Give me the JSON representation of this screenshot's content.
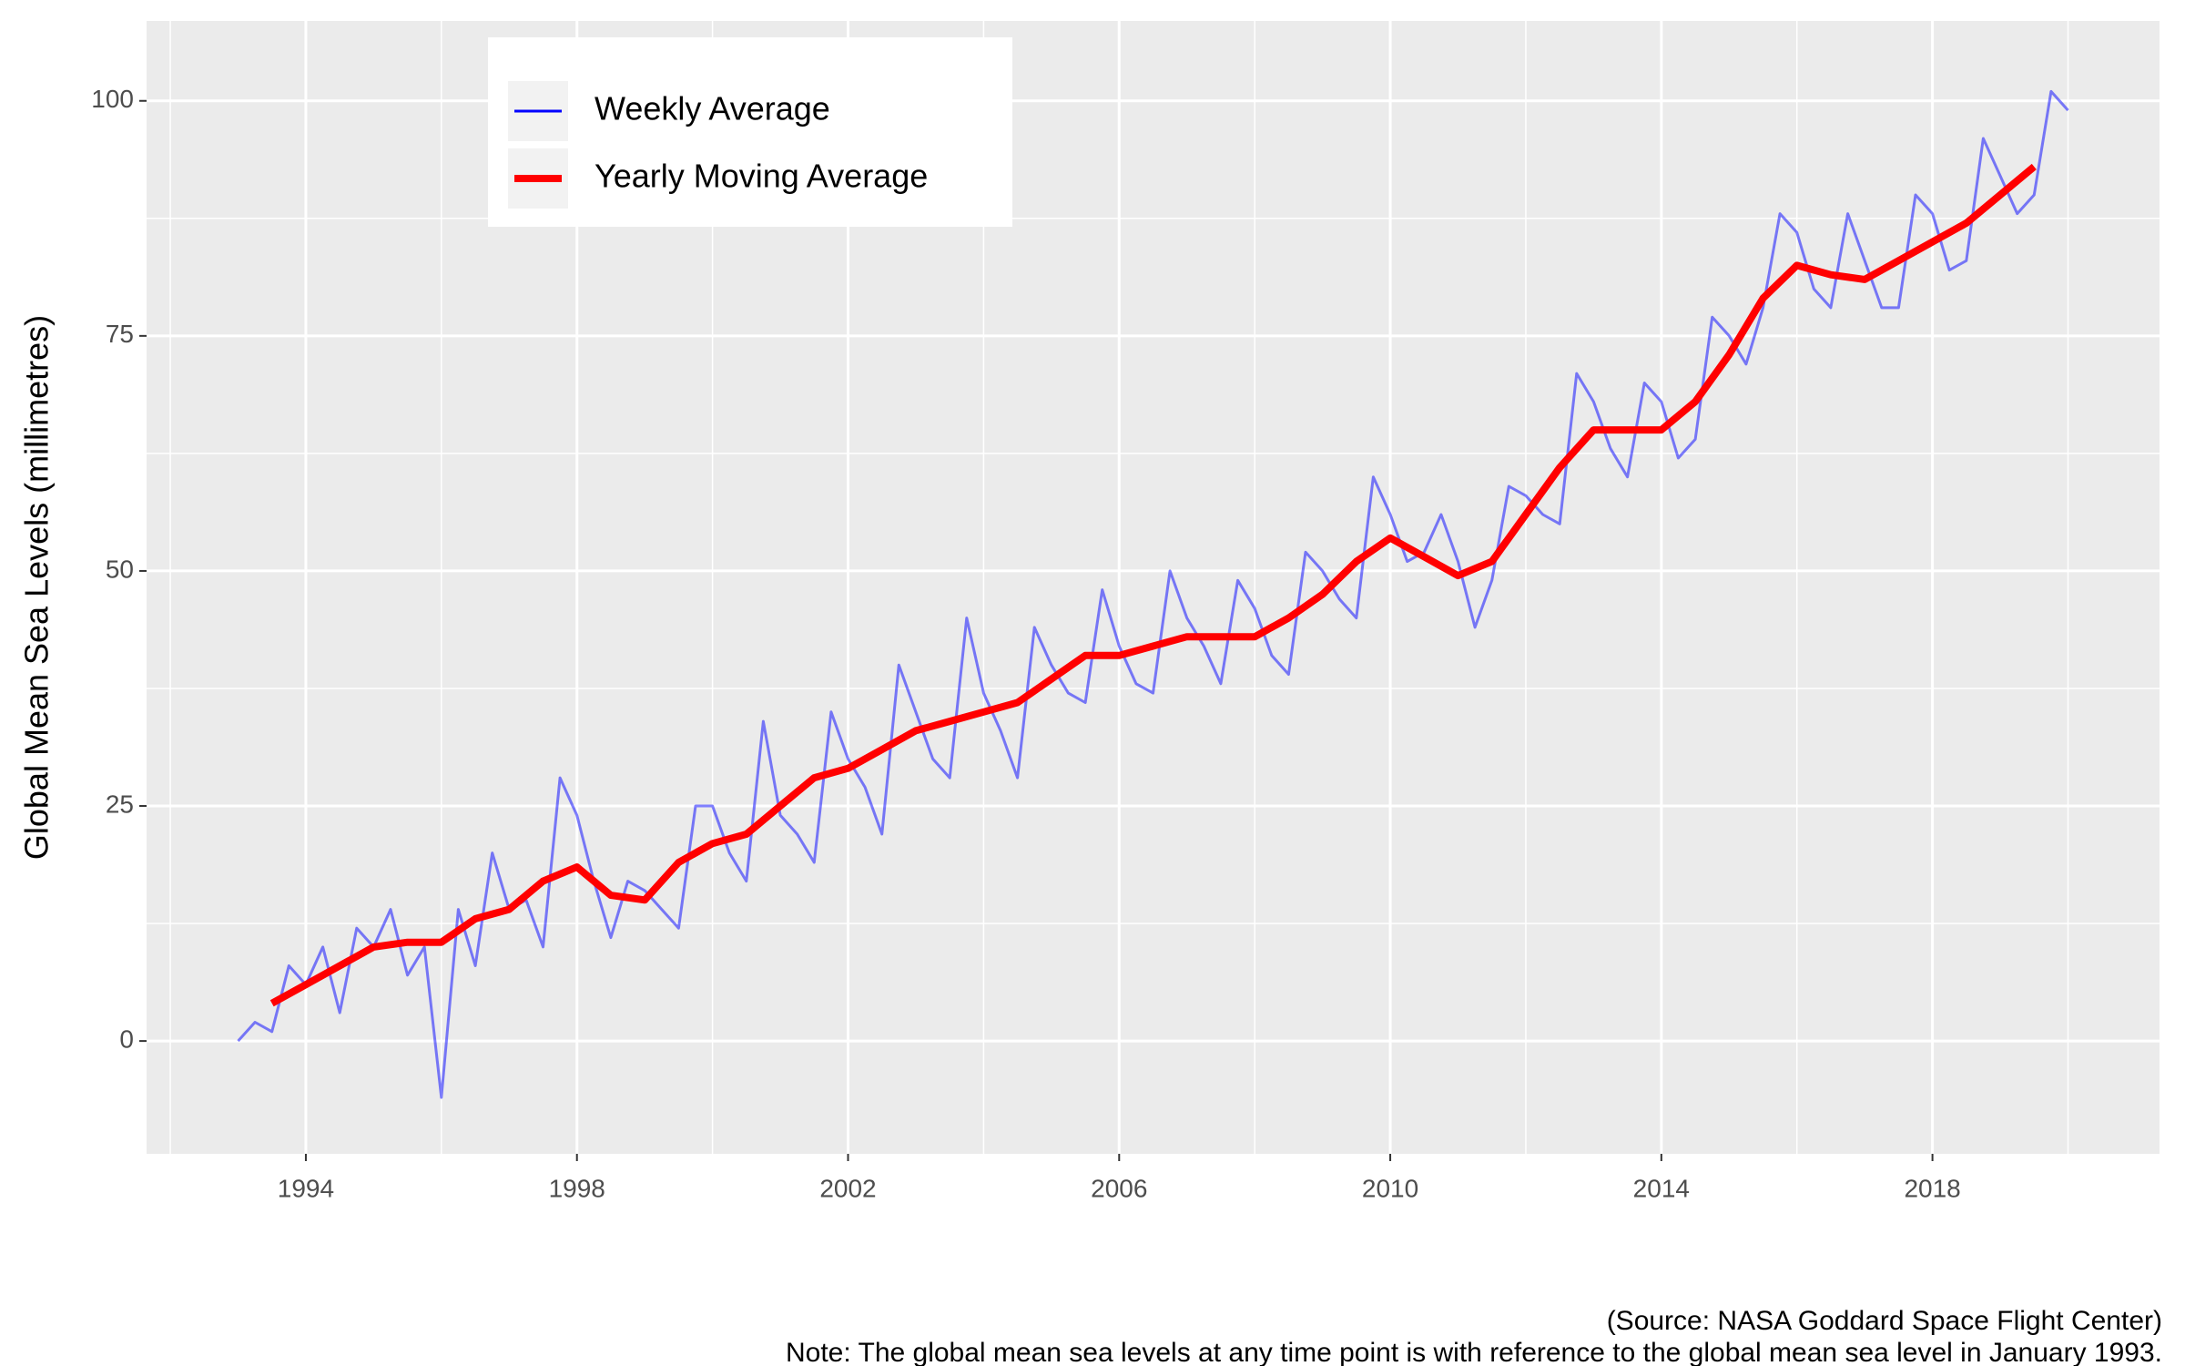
{
  "chart_data": {
    "type": "line",
    "y_label": "Global Mean Sea Levels (millimetres)",
    "caption": [
      "(Source: NASA Goddard Space Flight Center)",
      "Note: The global mean sea levels at any time point is with reference to the global mean sea level in January 1993."
    ],
    "xlim": [
      1991.65,
      2021.35
    ],
    "xticks": [
      1994,
      1998,
      2002,
      2006,
      2010,
      2014,
      2018
    ],
    "ylim": [
      -12,
      108.5
    ],
    "yticks": [
      0,
      25,
      50,
      75,
      100
    ],
    "grid": true,
    "legend": "top-left",
    "series": [
      {
        "name": "Weekly Average",
        "color": "#0000ff",
        "opacity": 0.5,
        "width": 3,
        "x": [
          1993.0,
          1993.25,
          1993.5,
          1993.75,
          1994.0,
          1994.25,
          1994.5,
          1994.75,
          1995.0,
          1995.25,
          1995.5,
          1995.75,
          1996.0,
          1996.25,
          1996.5,
          1996.75,
          1997.0,
          1997.25,
          1997.5,
          1997.75,
          1998.0,
          1998.25,
          1998.5,
          1998.75,
          1999.0,
          1999.25,
          1999.5,
          1999.75,
          2000.0,
          2000.25,
          2000.5,
          2000.75,
          2001.0,
          2001.25,
          2001.5,
          2001.75,
          2002.0,
          2002.25,
          2002.5,
          2002.75,
          2003.0,
          2003.25,
          2003.5,
          2003.75,
          2004.0,
          2004.25,
          2004.5,
          2004.75,
          2005.0,
          2005.25,
          2005.5,
          2005.75,
          2006.0,
          2006.25,
          2006.5,
          2006.75,
          2007.0,
          2007.25,
          2007.5,
          2007.75,
          2008.0,
          2008.25,
          2008.5,
          2008.75,
          2009.0,
          2009.25,
          2009.5,
          2009.75,
          2010.0,
          2010.25,
          2010.5,
          2010.75,
          2011.0,
          2011.25,
          2011.5,
          2011.75,
          2012.0,
          2012.25,
          2012.5,
          2012.75,
          2013.0,
          2013.25,
          2013.5,
          2013.75,
          2014.0,
          2014.25,
          2014.5,
          2014.75,
          2015.0,
          2015.25,
          2015.5,
          2015.75,
          2016.0,
          2016.25,
          2016.5,
          2016.75,
          2017.0,
          2017.25,
          2017.5,
          2017.75,
          2018.0,
          2018.25,
          2018.5,
          2018.75,
          2019.0,
          2019.25,
          2019.5,
          2019.75,
          2020.0
        ],
        "values": [
          0,
          2,
          1,
          8,
          6,
          10,
          3,
          12,
          10,
          14,
          7,
          10,
          -6,
          14,
          8,
          20,
          14,
          15,
          10,
          28,
          24,
          17,
          11,
          17,
          16,
          14,
          12,
          25,
          25,
          20,
          17,
          34,
          24,
          22,
          19,
          35,
          30,
          27,
          22,
          40,
          35,
          30,
          28,
          45,
          37,
          33,
          28,
          44,
          40,
          37,
          36,
          48,
          42,
          38,
          37,
          50,
          45,
          42,
          38,
          49,
          46,
          41,
          39,
          52,
          50,
          47,
          45,
          60,
          56,
          51,
          52,
          56,
          51,
          44,
          49,
          59,
          58,
          56,
          55,
          71,
          68,
          63,
          60,
          70,
          68,
          62,
          64,
          77,
          75,
          72,
          78,
          88,
          86,
          80,
          78,
          88,
          83,
          78,
          78,
          90,
          88,
          82,
          83,
          96,
          92,
          88,
          90,
          101,
          99
        ]
      },
      {
        "name": "Yearly Moving Average",
        "color": "#ff0000",
        "width": 8,
        "x": [
          1993.5,
          1994.0,
          1994.5,
          1995.0,
          1995.5,
          1996.0,
          1996.5,
          1997.0,
          1997.5,
          1998.0,
          1998.5,
          1999.0,
          1999.5,
          2000.0,
          2000.5,
          2001.0,
          2001.5,
          2002.0,
          2002.5,
          2003.0,
          2003.5,
          2004.0,
          2004.5,
          2005.0,
          2005.5,
          2006.0,
          2006.5,
          2007.0,
          2007.5,
          2008.0,
          2008.5,
          2009.0,
          2009.5,
          2010.0,
          2010.5,
          2011.0,
          2011.5,
          2012.0,
          2012.5,
          2013.0,
          2013.5,
          2014.0,
          2014.5,
          2015.0,
          2015.5,
          2016.0,
          2016.5,
          2017.0,
          2017.5,
          2018.0,
          2018.5,
          2019.0,
          2019.5
        ],
        "values": [
          4,
          6,
          8,
          10,
          10.5,
          10.5,
          13,
          14,
          17,
          18.5,
          15.5,
          15,
          19,
          21,
          22,
          25,
          28,
          29,
          31,
          33,
          34,
          35,
          36,
          38.5,
          41,
          41,
          42,
          43,
          43,
          43,
          45,
          47.5,
          51,
          53.5,
          51.5,
          49.5,
          51,
          56,
          61,
          65,
          65,
          65,
          68,
          73,
          79,
          82.5,
          81.5,
          81,
          83,
          85,
          87,
          90,
          93
        ]
      }
    ]
  }
}
